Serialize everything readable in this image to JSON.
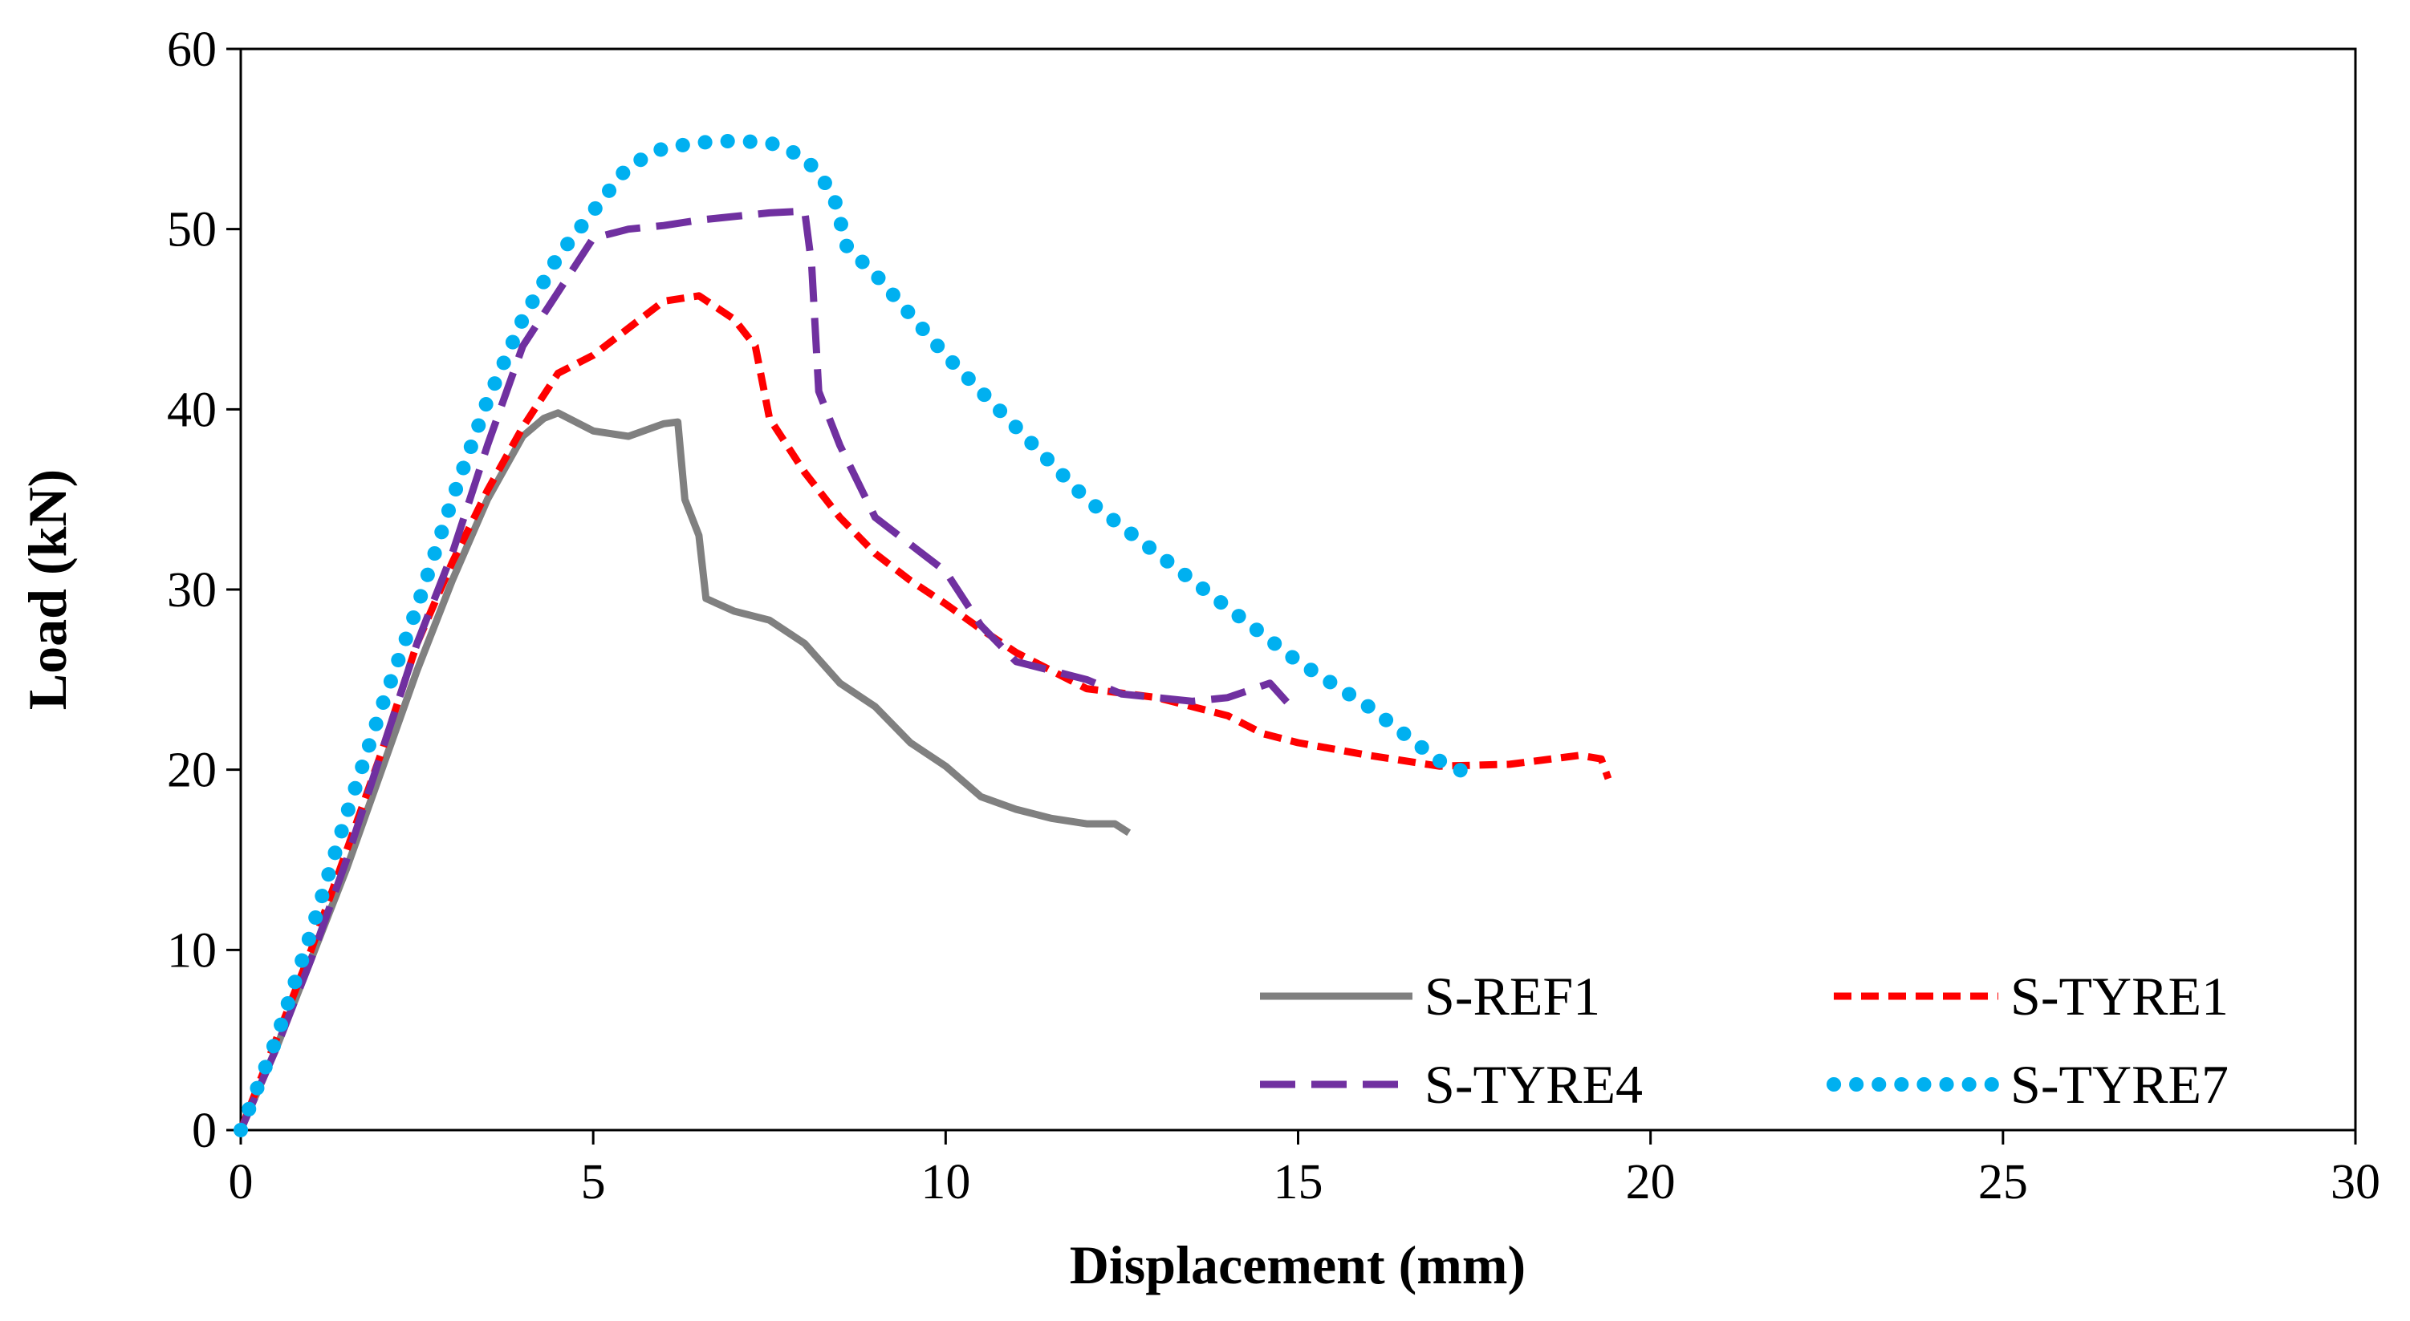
{
  "chart_data": {
    "type": "line",
    "title": "",
    "xlabel": "Displacement (mm)",
    "ylabel": "Load (kN)",
    "xlim": [
      0,
      30
    ],
    "ylim": [
      0,
      60
    ],
    "xticks": [
      0,
      5,
      10,
      15,
      20,
      25,
      30
    ],
    "yticks": [
      0,
      10,
      20,
      30,
      40,
      50,
      60
    ],
    "xtick_labels": [
      "0",
      "5",
      "10",
      "15",
      "20",
      "25",
      "30"
    ],
    "ytick_labels": [
      "0",
      "10",
      "20",
      "30",
      "40",
      "50",
      "60"
    ],
    "grid": false,
    "legend_position": "bottom-right",
    "series": [
      {
        "name": "S-REF1",
        "color": "#808080",
        "style": "solid",
        "points": [
          [
            0,
            0
          ],
          [
            0.5,
            4.5
          ],
          [
            1,
            9.5
          ],
          [
            1.5,
            14.5
          ],
          [
            2,
            20
          ],
          [
            2.5,
            25.5
          ],
          [
            3,
            30.5
          ],
          [
            3.5,
            35
          ],
          [
            4,
            38.5
          ],
          [
            4.3,
            39.5
          ],
          [
            4.5,
            39.8
          ],
          [
            4.8,
            39.2
          ],
          [
            5,
            38.8
          ],
          [
            5.5,
            38.5
          ],
          [
            6,
            39.2
          ],
          [
            6.2,
            39.3
          ],
          [
            6.3,
            35
          ],
          [
            6.5,
            33
          ],
          [
            6.6,
            29.5
          ],
          [
            7,
            28.8
          ],
          [
            7.5,
            28.3
          ],
          [
            8,
            27
          ],
          [
            8.5,
            24.8
          ],
          [
            9,
            23.5
          ],
          [
            9.5,
            21.5
          ],
          [
            10,
            20.2
          ],
          [
            10.5,
            18.5
          ],
          [
            11,
            17.8
          ],
          [
            11.5,
            17.3
          ],
          [
            12,
            17
          ],
          [
            12.4,
            17
          ],
          [
            12.6,
            16.5
          ]
        ]
      },
      {
        "name": "S-TYRE1",
        "color": "#ff0000",
        "style": "dashed",
        "points": [
          [
            0,
            0
          ],
          [
            0.5,
            5
          ],
          [
            1,
            10
          ],
          [
            1.5,
            15.5
          ],
          [
            2,
            21
          ],
          [
            2.5,
            27
          ],
          [
            3,
            31.5
          ],
          [
            3.5,
            35.5
          ],
          [
            4,
            39
          ],
          [
            4.5,
            42
          ],
          [
            5,
            43
          ],
          [
            5.5,
            44.5
          ],
          [
            6,
            46
          ],
          [
            6.5,
            46.3
          ],
          [
            7,
            45
          ],
          [
            7.3,
            43.5
          ],
          [
            7.5,
            39.5
          ],
          [
            8,
            36.5
          ],
          [
            8.5,
            34
          ],
          [
            9,
            32
          ],
          [
            9.5,
            30.5
          ],
          [
            10,
            29.2
          ],
          [
            10.5,
            27.8
          ],
          [
            11,
            26.5
          ],
          [
            12,
            24.5
          ],
          [
            13,
            24
          ],
          [
            14,
            23
          ],
          [
            14.5,
            22
          ],
          [
            15,
            21.5
          ],
          [
            16,
            20.8
          ],
          [
            17,
            20.2
          ],
          [
            18,
            20.3
          ],
          [
            19,
            20.8
          ],
          [
            19.3,
            20.6
          ],
          [
            19.4,
            19.5
          ]
        ]
      },
      {
        "name": "S-TYRE4",
        "color": "#7030a0",
        "style": "long-dashed",
        "points": [
          [
            0,
            0
          ],
          [
            0.5,
            4.5
          ],
          [
            1,
            9.5
          ],
          [
            1.5,
            15
          ],
          [
            2,
            21
          ],
          [
            2.5,
            27
          ],
          [
            3,
            32
          ],
          [
            3.5,
            38
          ],
          [
            4,
            43.5
          ],
          [
            4.5,
            46.5
          ],
          [
            5,
            49.5
          ],
          [
            5.5,
            50
          ],
          [
            6,
            50.2
          ],
          [
            6.5,
            50.5
          ],
          [
            7,
            50.7
          ],
          [
            7.5,
            50.9
          ],
          [
            8,
            51
          ],
          [
            8.1,
            48
          ],
          [
            8.2,
            41
          ],
          [
            8.5,
            38
          ],
          [
            9,
            34
          ],
          [
            9.5,
            32.5
          ],
          [
            10,
            31
          ],
          [
            10.5,
            28
          ],
          [
            11,
            26
          ],
          [
            12,
            25
          ],
          [
            12.5,
            24.2
          ],
          [
            13,
            24
          ],
          [
            13.5,
            23.8
          ],
          [
            14,
            24
          ],
          [
            14.6,
            24.8
          ],
          [
            14.9,
            23.5
          ]
        ]
      },
      {
        "name": "S-TYRE7",
        "color": "#00b0f0",
        "style": "dotted",
        "points": [
          [
            0,
            0
          ],
          [
            0.5,
            5
          ],
          [
            1,
            11
          ],
          [
            1.5,
            17.5
          ],
          [
            2,
            23.5
          ],
          [
            2.5,
            29
          ],
          [
            3,
            35
          ],
          [
            3.5,
            40.5
          ],
          [
            4,
            45
          ],
          [
            4.5,
            48.5
          ],
          [
            5,
            51
          ],
          [
            5.5,
            53.5
          ],
          [
            6,
            54.5
          ],
          [
            6.5,
            54.8
          ],
          [
            7,
            54.9
          ],
          [
            7.5,
            54.8
          ],
          [
            8,
            54
          ],
          [
            8.4,
            52
          ],
          [
            8.6,
            49
          ],
          [
            9,
            47.5
          ],
          [
            10,
            43
          ],
          [
            11,
            39
          ],
          [
            12,
            35
          ],
          [
            13,
            32
          ],
          [
            14,
            29
          ],
          [
            15,
            26
          ],
          [
            16,
            23.5
          ],
          [
            17,
            20.5
          ],
          [
            17.4,
            19.8
          ]
        ]
      }
    ]
  }
}
